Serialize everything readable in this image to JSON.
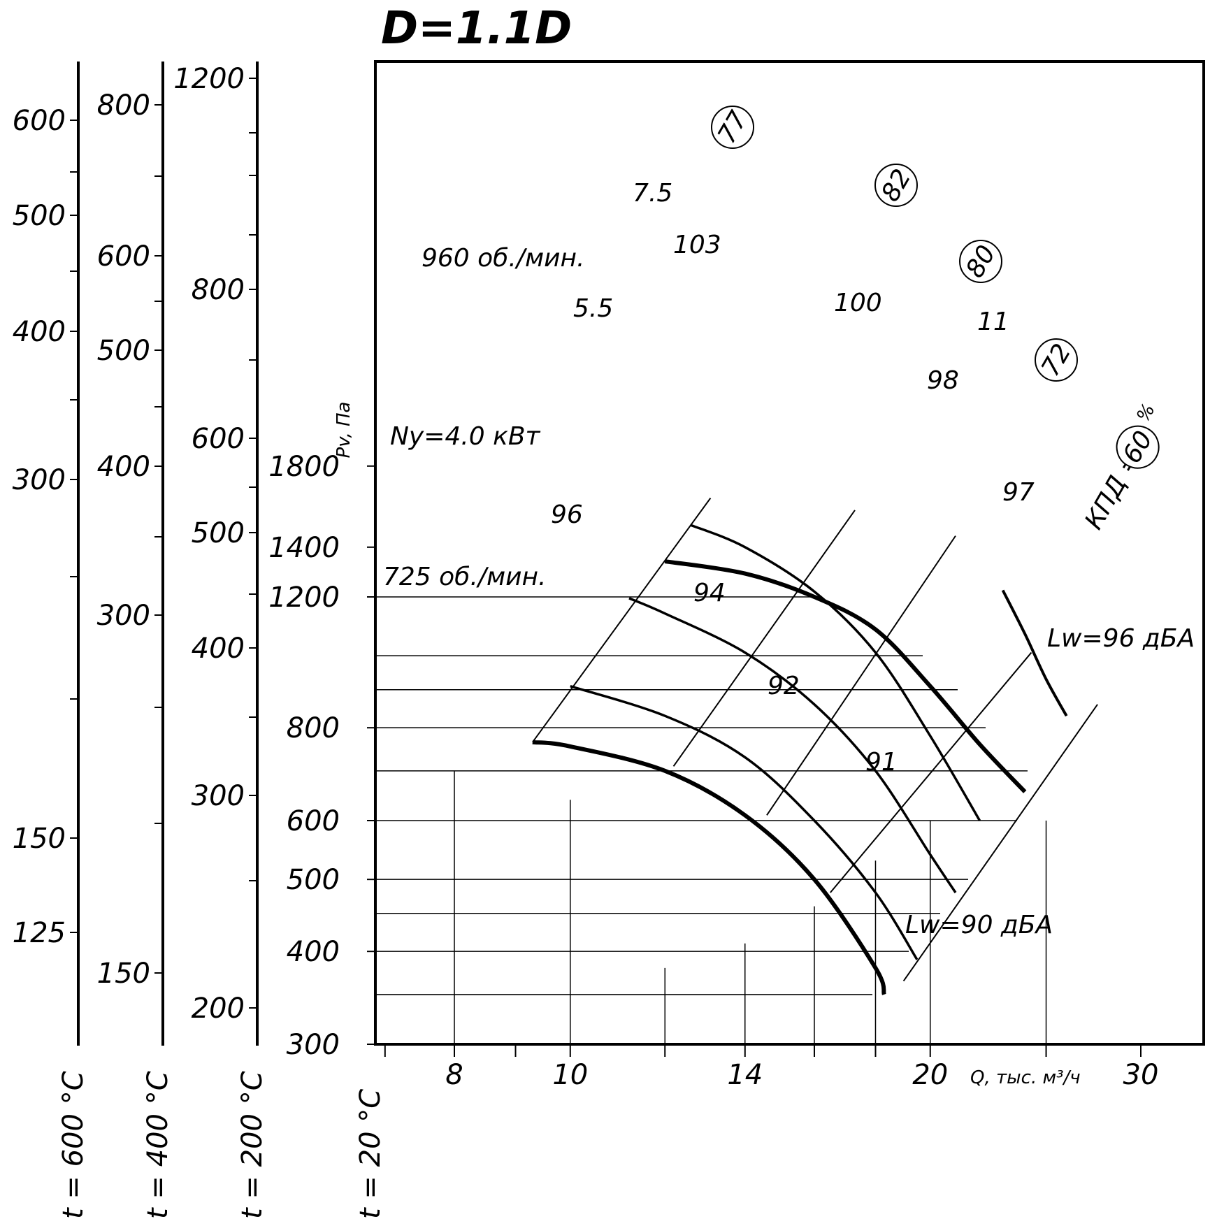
{
  "chart_data": {
    "type": "line",
    "title": "D=1.1D",
    "xlabel": "Q, тыс. м³/ч",
    "ylabel": "Pv, Па",
    "x_scale": "log",
    "y_scale": "log",
    "xlim": [
      6.9,
      36
    ],
    "ylim": [
      300,
      2100
    ],
    "x_ticks_labeled": [
      8,
      10,
      14,
      20,
      30
    ],
    "x_ticks_minor": [
      7,
      9,
      12,
      16,
      18,
      25
    ],
    "y_ticks_labeled": [
      300,
      400,
      500,
      600,
      800,
      1200,
      1400,
      1800
    ],
    "grid": true,
    "temperature_scales": [
      {
        "name": "t = 20 °C",
        "ticks": [
          300,
          400,
          500,
          600,
          800,
          1200,
          1400,
          1800
        ]
      },
      {
        "name": "t = 200 °C",
        "ticks": [
          200,
          300,
          400,
          500,
          600,
          800,
          1200
        ]
      },
      {
        "name": "t = 400 °C",
        "ticks": [
          150,
          300,
          400,
          500,
          600,
          800
        ]
      },
      {
        "name": "t = 600 °C",
        "ticks": [
          125,
          150,
          300,
          400,
          500,
          600
        ]
      }
    ],
    "series": [
      {
        "name": "960 об./мин.",
        "points": [
          [
            12,
            1340
          ],
          [
            14,
            1290
          ],
          [
            16,
            1200
          ],
          [
            18,
            1085
          ],
          [
            20,
            910
          ],
          [
            22,
            760
          ],
          [
            24,
            656
          ]
        ],
        "bold": true
      },
      {
        "name": "7.5",
        "points": [
          [
            12.6,
            1500
          ],
          [
            14,
            1400
          ],
          [
            16,
            1220
          ],
          [
            18,
            1010
          ],
          [
            20,
            780
          ],
          [
            22,
            600
          ]
        ]
      },
      {
        "name": "5.5",
        "points": [
          [
            11.2,
            1195
          ],
          [
            12,
            1140
          ],
          [
            14,
            1010
          ],
          [
            16,
            860
          ],
          [
            18,
            700
          ],
          [
            20,
            540
          ],
          [
            21,
            480
          ]
        ]
      },
      {
        "name": "Ny=4.0 кВт",
        "points": [
          [
            10,
            910
          ],
          [
            12,
            830
          ],
          [
            14,
            730
          ],
          [
            16,
            600
          ],
          [
            18,
            480
          ],
          [
            19.5,
            390
          ]
        ]
      },
      {
        "name": "725 об./мин.",
        "points": [
          [
            9.3,
            765
          ],
          [
            10,
            755
          ],
          [
            12,
            700
          ],
          [
            14,
            610
          ],
          [
            16,
            500
          ],
          [
            18,
            380
          ],
          [
            18.3,
            350
          ]
        ],
        "bold": true
      }
    ],
    "iso_lines": [
      {
        "label": "77",
        "kind": "efficiency",
        "points": [
          [
            9.3,
            765
          ],
          [
            13.1,
            1630
          ]
        ]
      },
      {
        "label": "82",
        "kind": "efficiency",
        "points": [
          [
            12.2,
            710
          ],
          [
            17.3,
            1570
          ]
        ]
      },
      {
        "label": "80",
        "kind": "efficiency",
        "points": [
          [
            14.6,
            610
          ],
          [
            21.0,
            1450
          ]
        ]
      },
      {
        "label": "72",
        "kind": "efficiency",
        "points": [
          [
            16.5,
            480
          ],
          [
            24.3,
            1010
          ]
        ]
      },
      {
        "label": "КПД = 60 %",
        "kind": "efficiency",
        "points": [
          [
            19.0,
            365
          ],
          [
            27.6,
            860
          ]
        ]
      }
    ],
    "efficiency_curve_11": {
      "label": "11",
      "points": [
        [
          23.0,
          1225
        ],
        [
          24,
          1070
        ],
        [
          25,
          930
        ],
        [
          26,
          830
        ]
      ]
    },
    "iso_labels": {
      "power": [
        "7.5",
        "5.5",
        "Ny=4.0 кВт",
        "11"
      ],
      "noise_96": [
        "103",
        "100",
        "98",
        "97",
        "96"
      ],
      "noise_90": [
        "94",
        "92",
        "91"
      ]
    },
    "noise_labels": [
      "Lw=96 дБА",
      "Lw=90 дБА"
    ],
    "speed_labels": [
      "960 об./мин.",
      "725 об./мин."
    ],
    "efficiency_prefix": "КПД =",
    "efficiency_suffix": "%",
    "efficiency_circle_value": "60"
  }
}
